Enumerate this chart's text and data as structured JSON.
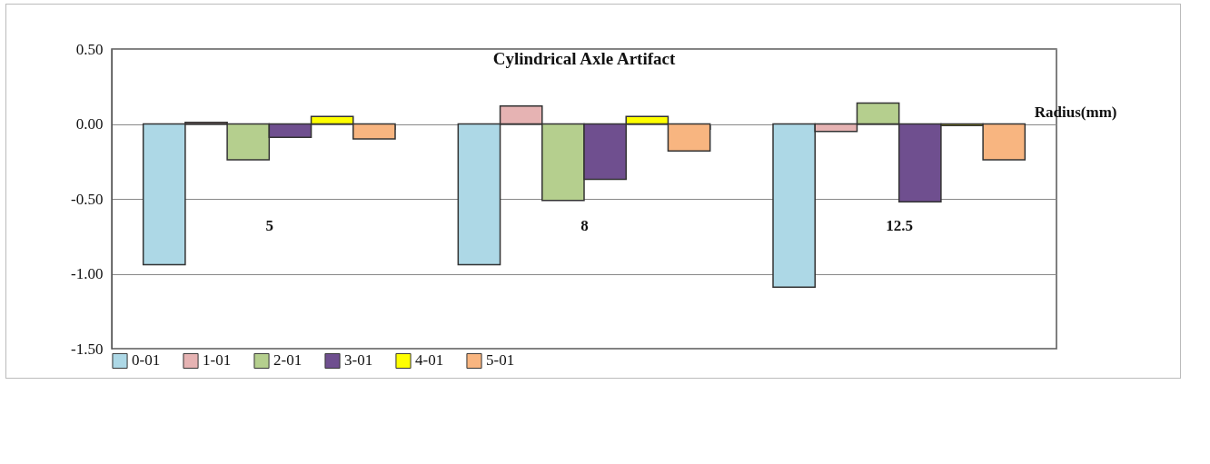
{
  "chart_data": {
    "type": "bar",
    "title": "Cylindrical Axle Artifact",
    "xlabel": "Radius(mm)",
    "categories": [
      "5",
      "8",
      "12.5"
    ],
    "series": [
      {
        "name": "0-01",
        "color": "#add8e6",
        "values": [
          -0.94,
          -0.94,
          -1.09
        ]
      },
      {
        "name": "1-01",
        "color": "#e6b3b3",
        "values": [
          0.01,
          0.12,
          -0.05
        ]
      },
      {
        "name": "2-01",
        "color": "#b5cf8e",
        "values": [
          -0.24,
          -0.51,
          0.14
        ]
      },
      {
        "name": "3-01",
        "color": "#6f4f8f",
        "values": [
          -0.09,
          -0.37,
          -0.52
        ]
      },
      {
        "name": "4-01",
        "color": "#ffff00",
        "values": [
          0.05,
          0.05,
          -0.01
        ]
      },
      {
        "name": "5-01",
        "color": "#f8b580",
        "values": [
          -0.1,
          -0.18,
          -0.24
        ]
      }
    ],
    "ylim": [
      -1.5,
      0.5
    ],
    "yticks": [
      {
        "value": -1.5,
        "label": "-1.50"
      },
      {
        "value": -1,
        "label": "-1.00"
      },
      {
        "value": -0.5,
        "label": "-0.50"
      },
      {
        "value": 0,
        "label": "0.00"
      },
      {
        "value": 0.5,
        "label": "0.50"
      }
    ],
    "grid": "y",
    "legend": "bottom"
  }
}
